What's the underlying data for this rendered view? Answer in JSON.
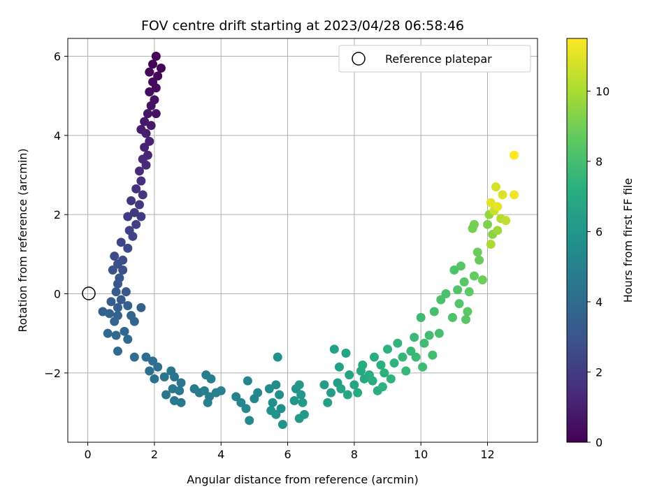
{
  "chart_data": {
    "type": "scatter",
    "title": "FOV centre drift starting at 2023/04/28 06:58:46",
    "xlabel": "Angular distance from reference (arcmin)",
    "ylabel": "Rotation from reference (arcmin)",
    "xlim": [
      -0.6,
      13.5
    ],
    "ylim": [
      -3.75,
      6.45
    ],
    "x_ticks": [
      0,
      2,
      4,
      6,
      8,
      10,
      12
    ],
    "y_ticks": [
      -2,
      0,
      2,
      4,
      6
    ],
    "x_tick_labels": [
      "0",
      "2",
      "4",
      "6",
      "8",
      "10",
      "12"
    ],
    "y_tick_labels": [
      "−2",
      "0",
      "2",
      "4",
      "6"
    ],
    "grid": true,
    "legend": {
      "position": "top-right",
      "entries": [
        "Reference platepar"
      ]
    },
    "colorbar": {
      "label": "Hours from first FF file",
      "range": [
        0,
        11.5
      ],
      "ticks": [
        0,
        2,
        4,
        6,
        8,
        10
      ],
      "tick_labels": [
        "0",
        "2",
        "4",
        "6",
        "8",
        "10"
      ],
      "colormap": "viridis"
    },
    "reference_point": {
      "x": 0,
      "y": 0,
      "label": "Reference platepar"
    },
    "series": [
      {
        "points": [
          {
            "x": 2.05,
            "y": 6.0,
            "h": 0.0
          },
          {
            "x": 1.95,
            "y": 5.8,
            "h": 0.1
          },
          {
            "x": 2.2,
            "y": 5.7,
            "h": 0.15
          },
          {
            "x": 1.85,
            "y": 5.6,
            "h": 0.2
          },
          {
            "x": 2.1,
            "y": 5.5,
            "h": 0.25
          },
          {
            "x": 1.95,
            "y": 5.35,
            "h": 0.3
          },
          {
            "x": 2.05,
            "y": 5.2,
            "h": 0.35
          },
          {
            "x": 1.85,
            "y": 5.1,
            "h": 0.4
          },
          {
            "x": 2.0,
            "y": 4.9,
            "h": 0.5
          },
          {
            "x": 1.9,
            "y": 4.75,
            "h": 0.55
          },
          {
            "x": 2.05,
            "y": 4.55,
            "h": 0.6
          },
          {
            "x": 1.8,
            "y": 4.55,
            "h": 0.65
          },
          {
            "x": 1.7,
            "y": 4.35,
            "h": 0.75
          },
          {
            "x": 1.9,
            "y": 4.25,
            "h": 0.8
          },
          {
            "x": 1.6,
            "y": 4.15,
            "h": 0.9
          },
          {
            "x": 1.75,
            "y": 4.05,
            "h": 1.0
          },
          {
            "x": 1.85,
            "y": 3.85,
            "h": 1.05
          },
          {
            "x": 1.7,
            "y": 3.7,
            "h": 1.1
          },
          {
            "x": 1.8,
            "y": 3.5,
            "h": 1.2
          },
          {
            "x": 1.65,
            "y": 3.4,
            "h": 1.3
          },
          {
            "x": 1.75,
            "y": 3.25,
            "h": 1.35
          },
          {
            "x": 1.55,
            "y": 3.1,
            "h": 1.4
          },
          {
            "x": 1.6,
            "y": 2.85,
            "h": 1.5
          },
          {
            "x": 1.45,
            "y": 2.65,
            "h": 1.6
          },
          {
            "x": 1.65,
            "y": 2.5,
            "h": 1.7
          },
          {
            "x": 1.3,
            "y": 2.35,
            "h": 1.8
          },
          {
            "x": 1.55,
            "y": 2.25,
            "h": 1.85
          },
          {
            "x": 1.4,
            "y": 2.05,
            "h": 1.9
          },
          {
            "x": 1.6,
            "y": 1.95,
            "h": 1.95
          },
          {
            "x": 1.2,
            "y": 1.95,
            "h": 2.0
          },
          {
            "x": 1.45,
            "y": 1.75,
            "h": 2.1
          },
          {
            "x": 1.25,
            "y": 1.6,
            "h": 2.2
          },
          {
            "x": 1.35,
            "y": 1.45,
            "h": 2.3
          },
          {
            "x": 1.0,
            "y": 1.3,
            "h": 2.4
          },
          {
            "x": 1.2,
            "y": 1.15,
            "h": 2.5
          },
          {
            "x": 0.8,
            "y": 0.95,
            "h": 2.6
          },
          {
            "x": 1.05,
            "y": 0.85,
            "h": 2.7
          },
          {
            "x": 0.9,
            "y": 0.75,
            "h": 2.8
          },
          {
            "x": 1.05,
            "y": 0.6,
            "h": 2.85
          },
          {
            "x": 0.75,
            "y": 0.6,
            "h": 2.9
          },
          {
            "x": 0.95,
            "y": 0.4,
            "h": 3.0
          },
          {
            "x": 0.9,
            "y": 0.25,
            "h": 3.1
          },
          {
            "x": 1.15,
            "y": 0.05,
            "h": 3.2
          },
          {
            "x": 0.85,
            "y": 0.05,
            "h": 3.25
          },
          {
            "x": 1.0,
            "y": -0.15,
            "h": 3.3
          },
          {
            "x": 0.7,
            "y": -0.2,
            "h": 3.4
          },
          {
            "x": 0.9,
            "y": -0.35,
            "h": 3.45
          },
          {
            "x": 1.2,
            "y": -0.3,
            "h": 3.5
          },
          {
            "x": 0.45,
            "y": -0.45,
            "h": 3.55
          },
          {
            "x": 1.6,
            "y": -0.35,
            "h": 3.55
          },
          {
            "x": 0.65,
            "y": -0.5,
            "h": 3.6
          },
          {
            "x": 0.9,
            "y": -0.55,
            "h": 3.65
          },
          {
            "x": 1.3,
            "y": -0.55,
            "h": 3.7
          },
          {
            "x": 0.8,
            "y": -0.7,
            "h": 3.7
          },
          {
            "x": 1.4,
            "y": -0.7,
            "h": 3.75
          },
          {
            "x": 1.1,
            "y": -0.95,
            "h": 3.8
          },
          {
            "x": 0.6,
            "y": -1.0,
            "h": 3.85
          },
          {
            "x": 0.85,
            "y": -1.05,
            "h": 3.85
          },
          {
            "x": 1.2,
            "y": -1.15,
            "h": 3.9
          },
          {
            "x": 0.9,
            "y": -1.45,
            "h": 3.95
          },
          {
            "x": 1.4,
            "y": -1.6,
            "h": 4.05
          },
          {
            "x": 1.75,
            "y": -1.6,
            "h": 4.1
          },
          {
            "x": 1.95,
            "y": -1.7,
            "h": 4.15
          },
          {
            "x": 2.1,
            "y": -1.85,
            "h": 4.2
          },
          {
            "x": 1.85,
            "y": -1.95,
            "h": 4.2
          },
          {
            "x": 2.0,
            "y": -2.15,
            "h": 4.3
          },
          {
            "x": 2.3,
            "y": -2.1,
            "h": 4.35
          },
          {
            "x": 2.5,
            "y": -1.95,
            "h": 4.4
          },
          {
            "x": 2.6,
            "y": -2.1,
            "h": 4.45
          },
          {
            "x": 2.8,
            "y": -2.25,
            "h": 4.5
          },
          {
            "x": 2.55,
            "y": -2.4,
            "h": 4.55
          },
          {
            "x": 2.35,
            "y": -2.55,
            "h": 4.55
          },
          {
            "x": 2.75,
            "y": -2.45,
            "h": 4.6
          },
          {
            "x": 2.6,
            "y": -2.7,
            "h": 4.65
          },
          {
            "x": 2.8,
            "y": -2.75,
            "h": 4.65
          },
          {
            "x": 3.2,
            "y": -2.4,
            "h": 4.7
          },
          {
            "x": 3.35,
            "y": -2.5,
            "h": 4.75
          },
          {
            "x": 3.55,
            "y": -2.05,
            "h": 4.8
          },
          {
            "x": 3.7,
            "y": -2.15,
            "h": 4.85
          },
          {
            "x": 3.5,
            "y": -2.45,
            "h": 4.85
          },
          {
            "x": 3.65,
            "y": -2.6,
            "h": 4.9
          },
          {
            "x": 3.85,
            "y": -2.5,
            "h": 4.95
          },
          {
            "x": 4.0,
            "y": -2.45,
            "h": 5.0
          },
          {
            "x": 3.6,
            "y": -2.75,
            "h": 5.0
          },
          {
            "x": 4.45,
            "y": -2.6,
            "h": 5.1
          },
          {
            "x": 4.6,
            "y": -2.75,
            "h": 5.15
          },
          {
            "x": 4.8,
            "y": -2.2,
            "h": 5.2
          },
          {
            "x": 4.75,
            "y": -2.9,
            "h": 5.25
          },
          {
            "x": 5.0,
            "y": -2.65,
            "h": 5.3
          },
          {
            "x": 4.85,
            "y": -3.2,
            "h": 5.35
          },
          {
            "x": 5.1,
            "y": -2.5,
            "h": 5.4
          },
          {
            "x": 5.45,
            "y": -2.4,
            "h": 5.5
          },
          {
            "x": 5.65,
            "y": -2.3,
            "h": 5.55
          },
          {
            "x": 5.75,
            "y": -2.55,
            "h": 5.6
          },
          {
            "x": 5.55,
            "y": -2.75,
            "h": 5.65
          },
          {
            "x": 5.8,
            "y": -2.9,
            "h": 5.7
          },
          {
            "x": 5.5,
            "y": -2.95,
            "h": 5.75
          },
          {
            "x": 5.7,
            "y": -1.6,
            "h": 5.75
          },
          {
            "x": 5.85,
            "y": -3.3,
            "h": 5.8
          },
          {
            "x": 5.65,
            "y": -3.05,
            "h": 5.85
          },
          {
            "x": 6.25,
            "y": -2.4,
            "h": 5.9
          },
          {
            "x": 6.4,
            "y": -2.55,
            "h": 6.0
          },
          {
            "x": 6.2,
            "y": -2.7,
            "h": 6.05
          },
          {
            "x": 6.35,
            "y": -2.3,
            "h": 6.1
          },
          {
            "x": 6.5,
            "y": -3.05,
            "h": 6.15
          },
          {
            "x": 6.35,
            "y": -3.15,
            "h": 6.2
          },
          {
            "x": 6.45,
            "y": -2.75,
            "h": 6.25
          },
          {
            "x": 7.1,
            "y": -2.3,
            "h": 6.35
          },
          {
            "x": 7.3,
            "y": -2.5,
            "h": 6.4
          },
          {
            "x": 7.5,
            "y": -2.25,
            "h": 6.45
          },
          {
            "x": 7.2,
            "y": -2.75,
            "h": 6.5
          },
          {
            "x": 7.4,
            "y": -1.4,
            "h": 6.55
          },
          {
            "x": 7.55,
            "y": -1.85,
            "h": 6.6
          },
          {
            "x": 7.6,
            "y": -2.4,
            "h": 6.65
          },
          {
            "x": 7.75,
            "y": -1.5,
            "h": 6.7
          },
          {
            "x": 7.85,
            "y": -2.05,
            "h": 6.75
          },
          {
            "x": 8.0,
            "y": -2.3,
            "h": 6.8
          },
          {
            "x": 7.8,
            "y": -2.55,
            "h": 6.85
          },
          {
            "x": 8.2,
            "y": -1.95,
            "h": 6.9
          },
          {
            "x": 8.3,
            "y": -2.15,
            "h": 6.95
          },
          {
            "x": 8.1,
            "y": -2.5,
            "h": 7.0
          },
          {
            "x": 8.25,
            "y": -1.8,
            "h": 7.05
          },
          {
            "x": 8.45,
            "y": -2.05,
            "h": 7.1
          },
          {
            "x": 8.6,
            "y": -1.6,
            "h": 7.15
          },
          {
            "x": 8.55,
            "y": -2.2,
            "h": 7.2
          },
          {
            "x": 8.7,
            "y": -2.45,
            "h": 7.2
          },
          {
            "x": 8.8,
            "y": -1.8,
            "h": 7.25
          },
          {
            "x": 8.9,
            "y": -2.0,
            "h": 7.3
          },
          {
            "x": 8.85,
            "y": -2.35,
            "h": 7.35
          },
          {
            "x": 9.0,
            "y": -1.4,
            "h": 7.35
          },
          {
            "x": 9.1,
            "y": -2.15,
            "h": 7.4
          },
          {
            "x": 9.2,
            "y": -1.75,
            "h": 7.45
          },
          {
            "x": 9.3,
            "y": -1.25,
            "h": 7.5
          },
          {
            "x": 9.45,
            "y": -1.6,
            "h": 7.55
          },
          {
            "x": 9.55,
            "y": -1.95,
            "h": 7.6
          },
          {
            "x": 9.7,
            "y": -1.45,
            "h": 7.65
          },
          {
            "x": 9.8,
            "y": -1.1,
            "h": 7.7
          },
          {
            "x": 9.85,
            "y": -1.6,
            "h": 7.75
          },
          {
            "x": 10.05,
            "y": -1.85,
            "h": 7.8
          },
          {
            "x": 10.0,
            "y": -0.6,
            "h": 7.8
          },
          {
            "x": 10.1,
            "y": -1.25,
            "h": 7.85
          },
          {
            "x": 10.25,
            "y": -1.05,
            "h": 7.9
          },
          {
            "x": 10.35,
            "y": -1.55,
            "h": 7.95
          },
          {
            "x": 10.4,
            "y": -0.45,
            "h": 8.0
          },
          {
            "x": 10.55,
            "y": -1.0,
            "h": 8.05
          },
          {
            "x": 10.6,
            "y": -0.15,
            "h": 8.1
          },
          {
            "x": 10.75,
            "y": 0.0,
            "h": 8.15
          },
          {
            "x": 10.95,
            "y": -0.6,
            "h": 8.2
          },
          {
            "x": 11.0,
            "y": 0.6,
            "h": 8.25
          },
          {
            "x": 11.1,
            "y": 0.1,
            "h": 8.3
          },
          {
            "x": 11.15,
            "y": -0.25,
            "h": 8.35
          },
          {
            "x": 11.2,
            "y": 0.7,
            "h": 8.4
          },
          {
            "x": 11.3,
            "y": 0.3,
            "h": 8.45
          },
          {
            "x": 11.35,
            "y": -0.65,
            "h": 8.5
          },
          {
            "x": 11.4,
            "y": -0.45,
            "h": 8.55
          },
          {
            "x": 11.45,
            "y": 0.05,
            "h": 8.6
          },
          {
            "x": 11.6,
            "y": 0.45,
            "h": 8.7
          },
          {
            "x": 11.75,
            "y": 0.85,
            "h": 8.8
          },
          {
            "x": 11.7,
            "y": 1.05,
            "h": 8.85
          },
          {
            "x": 11.85,
            "y": 0.35,
            "h": 8.9
          },
          {
            "x": 11.55,
            "y": 1.65,
            "h": 9.0
          },
          {
            "x": 11.6,
            "y": 1.75,
            "h": 9.05
          },
          {
            "x": 12.0,
            "y": 1.75,
            "h": 9.2
          },
          {
            "x": 12.15,
            "y": 1.5,
            "h": 9.4
          },
          {
            "x": 12.05,
            "y": 2.0,
            "h": 9.6
          },
          {
            "x": 12.3,
            "y": 1.6,
            "h": 9.8
          },
          {
            "x": 12.1,
            "y": 1.25,
            "h": 10.0
          },
          {
            "x": 12.4,
            "y": 1.9,
            "h": 10.2
          },
          {
            "x": 12.55,
            "y": 1.85,
            "h": 10.4
          },
          {
            "x": 12.2,
            "y": 2.1,
            "h": 10.6
          },
          {
            "x": 12.25,
            "y": 2.7,
            "h": 10.8
          },
          {
            "x": 12.45,
            "y": 2.5,
            "h": 10.9
          },
          {
            "x": 12.1,
            "y": 2.3,
            "h": 11.0
          },
          {
            "x": 12.3,
            "y": 2.2,
            "h": 11.1
          },
          {
            "x": 12.8,
            "y": 2.5,
            "h": 11.3
          },
          {
            "x": 12.8,
            "y": 3.5,
            "h": 11.5
          }
        ]
      }
    ]
  }
}
